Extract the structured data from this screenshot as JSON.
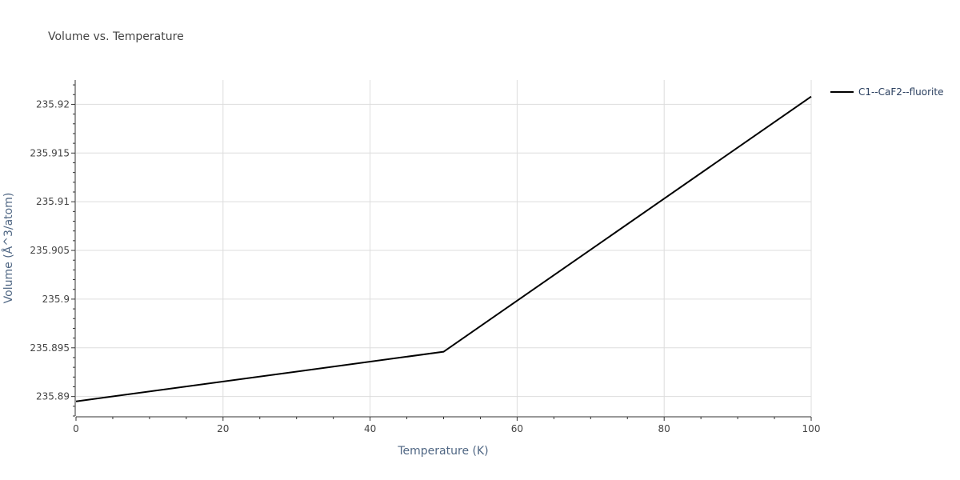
{
  "chart_data": {
    "type": "line",
    "title": "Volume vs. Temperature",
    "xlabel": "Temperature (K)",
    "ylabel": "Volume (Å^3/atom)",
    "xlim": [
      0,
      100
    ],
    "ylim": [
      235.888,
      235.9225
    ],
    "x_ticks": [
      0,
      20,
      40,
      60,
      80,
      100
    ],
    "x_tick_labels": [
      "0",
      "20",
      "40",
      "60",
      "80",
      "100"
    ],
    "y_ticks": [
      235.89,
      235.895,
      235.9,
      235.905,
      235.91,
      235.915,
      235.92
    ],
    "y_tick_labels": [
      "235.89",
      "235.895",
      "235.9",
      "235.905",
      "235.91",
      "235.915",
      "235.92"
    ],
    "grid": true,
    "legend_position": "top-right outside",
    "series": [
      {
        "name": "C1--CaF2--fluorite",
        "color": "#000000",
        "x": [
          0,
          50,
          100
        ],
        "y": [
          235.8895,
          235.8946,
          235.9208
        ]
      }
    ]
  }
}
